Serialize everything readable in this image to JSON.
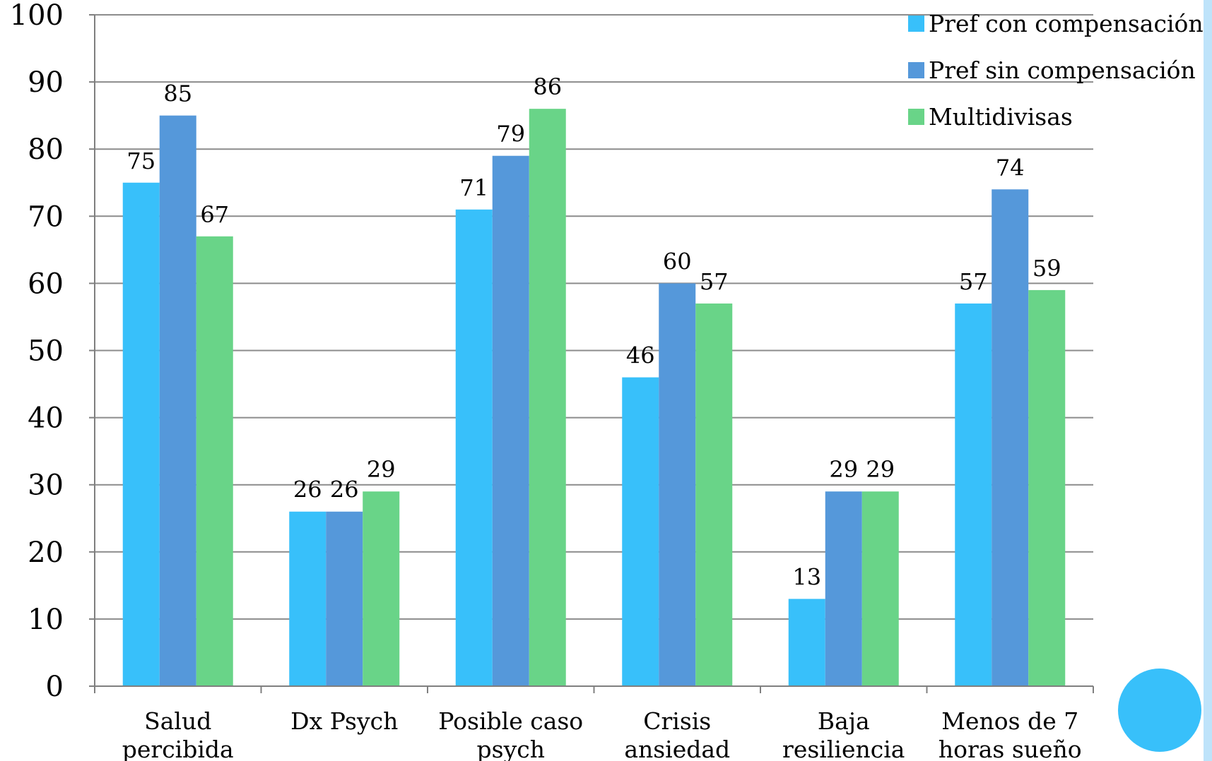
{
  "chart_data": {
    "type": "bar",
    "title": "",
    "xlabel": "",
    "ylabel": "",
    "ylim": [
      0,
      100
    ],
    "yticks": [
      0,
      10,
      20,
      30,
      40,
      50,
      60,
      70,
      80,
      90,
      100
    ],
    "grid": true,
    "legend_position": "top-right",
    "categories": [
      [
        "Salud",
        "percibida"
      ],
      [
        "Dx Psych"
      ],
      [
        "Posible caso",
        "psych"
      ],
      [
        "Crisis",
        "ansiedad"
      ],
      [
        "Baja",
        "resiliencia"
      ],
      [
        "Menos de 7",
        "horas sueño"
      ]
    ],
    "series": [
      {
        "name": "Pref con compensación",
        "color": "#38C0FA",
        "values": [
          75,
          26,
          71,
          46,
          13,
          57
        ]
      },
      {
        "name": "Pref sin compensación",
        "color": "#5598DA",
        "values": [
          85,
          26,
          79,
          60,
          29,
          74
        ]
      },
      {
        "name": "Multidivisas",
        "color": "#69D488",
        "values": [
          67,
          29,
          86,
          57,
          29,
          59
        ]
      }
    ]
  },
  "decor": {
    "accent_color": "#38C0FA",
    "strip_color": "#BEE3FA"
  }
}
